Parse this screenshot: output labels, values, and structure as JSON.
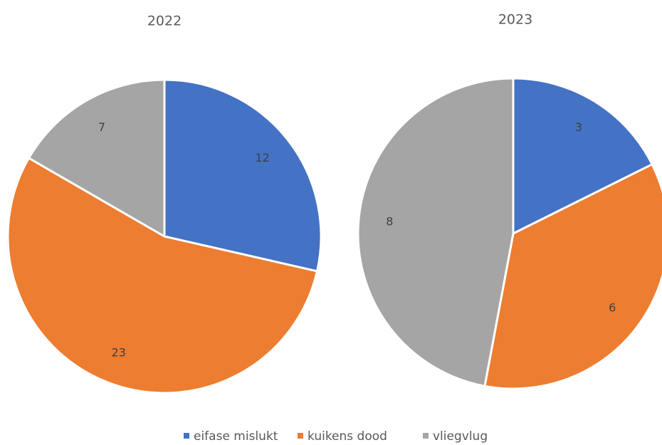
{
  "chart_data": [
    {
      "type": "pie",
      "title": "2022",
      "values": [
        12,
        23,
        7
      ]
    },
    {
      "type": "pie",
      "title": "2023",
      "values": [
        3,
        6,
        8
      ]
    }
  ],
  "legend": [
    "eifase mislukt",
    "kuikens dood",
    "vliegvlug"
  ],
  "colors": [
    "#4472c4",
    "#ed7d31",
    "#a5a5a5"
  ]
}
